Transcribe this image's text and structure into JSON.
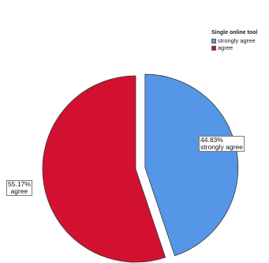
{
  "chart_data": {
    "type": "pie",
    "legend_title": "Single online tool",
    "legend_position": "top-right",
    "exploded_slice": "strongly agree",
    "slices": [
      {
        "name": "strongly agree",
        "value": 44.83,
        "label_percent": "44.83%",
        "label_name": "strongly agree",
        "color": "#5596e6",
        "start_angle_deg": 0
      },
      {
        "name": "agree",
        "value": 55.17,
        "label_percent": "55.17%",
        "label_name": "agree",
        "color": "#d2102f"
      }
    ]
  }
}
